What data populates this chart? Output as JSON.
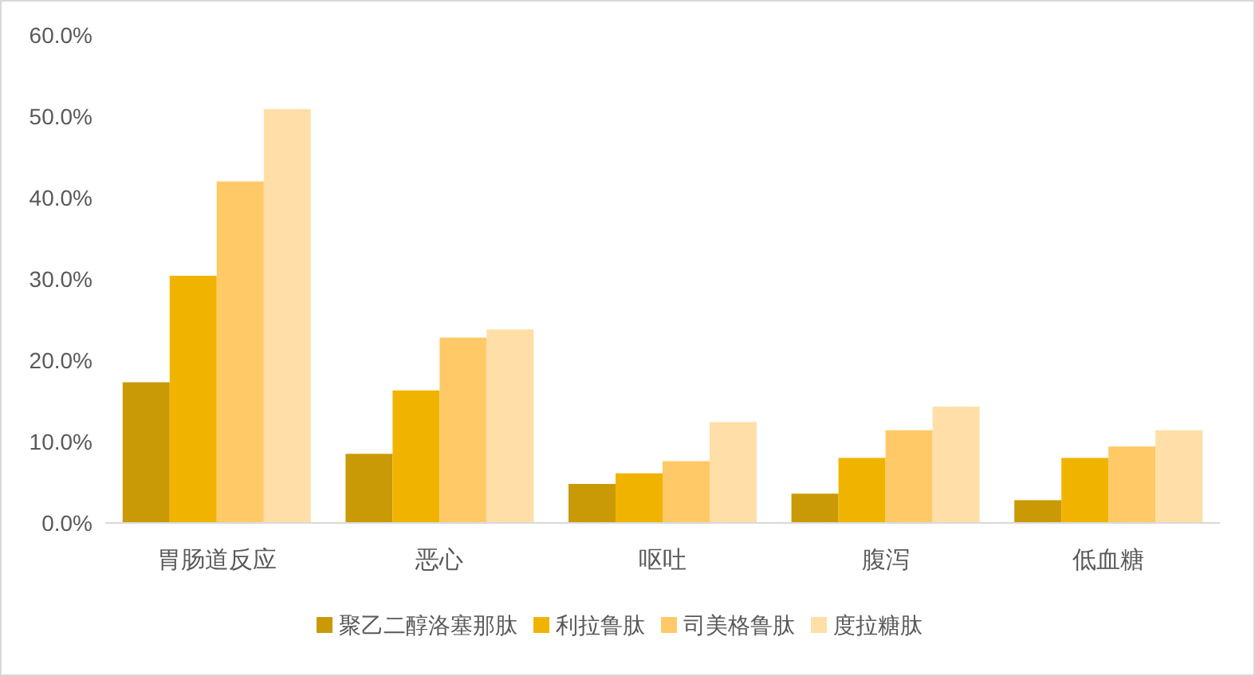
{
  "chart_data": {
    "type": "bar",
    "categories": [
      "胃肠道反应",
      "恶心",
      "呕吐",
      "腹泻",
      "低血糖"
    ],
    "series": [
      {
        "name": "聚乙二醇洛塞那肽",
        "color": "#c99a06",
        "values": [
          17.3,
          8.5,
          4.8,
          3.6,
          2.8
        ]
      },
      {
        "name": "利拉鲁肽",
        "color": "#f0b400",
        "values": [
          30.4,
          16.3,
          6.1,
          8.0,
          8.0
        ]
      },
      {
        "name": "司美格鲁肽",
        "color": "#ffc967",
        "values": [
          42.0,
          22.8,
          7.6,
          11.4,
          9.4
        ]
      },
      {
        "name": "度拉糖肽",
        "color": "#ffdea8",
        "values": [
          50.9,
          23.8,
          12.4,
          14.3,
          11.4
        ]
      }
    ],
    "ylim": [
      0,
      60
    ],
    "yticks": [
      {
        "value": 0,
        "label": "0.0%"
      },
      {
        "value": 10,
        "label": "10.0%"
      },
      {
        "value": 20,
        "label": "20.0%"
      },
      {
        "value": 30,
        "label": "30.0%"
      },
      {
        "value": 40,
        "label": "40.0%"
      },
      {
        "value": 50,
        "label": "50.0%"
      },
      {
        "value": 60,
        "label": "60.0%"
      }
    ],
    "grid": false,
    "legend": "bottom"
  }
}
